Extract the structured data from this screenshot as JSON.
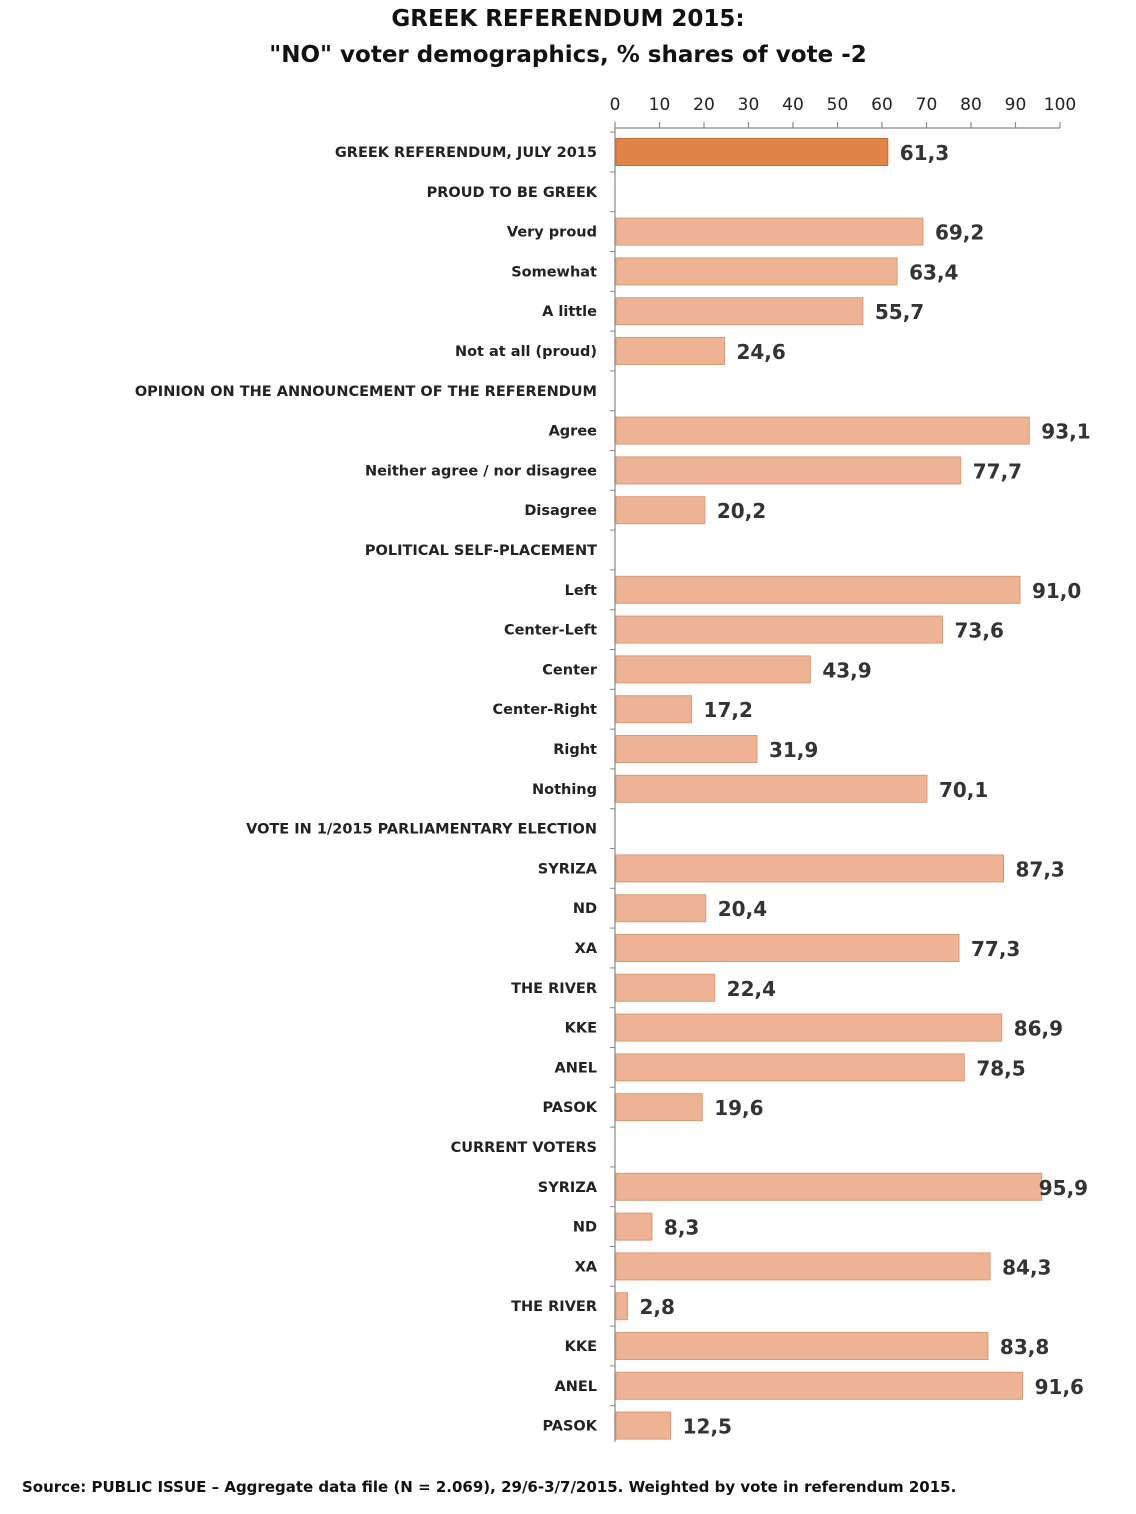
{
  "chart_data": {
    "type": "bar",
    "orientation": "horizontal",
    "title": "GREEK REFERENDUM 2015:",
    "subtitle": "\"NO\" voter demographics, % shares of vote -2",
    "xlim": [
      0,
      100
    ],
    "xticks": [
      "0",
      "10",
      "20",
      "30",
      "40",
      "50",
      "60",
      "70",
      "80",
      "90",
      "100"
    ],
    "highlight_color": "#E0844A",
    "bar_color": "#EDB394",
    "rows": [
      {
        "label": "GREEK REFERENDUM, JULY 2015",
        "value": 61.3,
        "value_label": "61,3",
        "highlight": true
      },
      {
        "label": "PROUD TO BE GREEK",
        "header": true
      },
      {
        "label": "Very proud",
        "value": 69.2,
        "value_label": "69,2"
      },
      {
        "label": "Somewhat",
        "value": 63.4,
        "value_label": "63,4"
      },
      {
        "label": "A little",
        "value": 55.7,
        "value_label": "55,7"
      },
      {
        "label": "Not at all (proud)",
        "value": 24.6,
        "value_label": "24,6"
      },
      {
        "label": "OPINION ON THE ANNOUNCEMENT OF THE REFERENDUM",
        "header": true
      },
      {
        "label": "Agree",
        "value": 93.1,
        "value_label": "93,1"
      },
      {
        "label": "Neither agree / nor disagree",
        "value": 77.7,
        "value_label": "77,7"
      },
      {
        "label": "Disagree",
        "value": 20.2,
        "value_label": "20,2"
      },
      {
        "label": "POLITICAL SELF-PLACEMENT",
        "header": true
      },
      {
        "label": "Left",
        "value": 91.0,
        "value_label": "91,0"
      },
      {
        "label": "Center-Left",
        "value": 73.6,
        "value_label": "73,6"
      },
      {
        "label": "Center",
        "value": 43.9,
        "value_label": "43,9"
      },
      {
        "label": "Center-Right",
        "value": 17.2,
        "value_label": "17,2"
      },
      {
        "label": "Right",
        "value": 31.9,
        "value_label": "31,9"
      },
      {
        "label": "Nothing",
        "value": 70.1,
        "value_label": "70,1"
      },
      {
        "label": "VOTE IN 1/2015 PARLIAMENTARY ELECTION",
        "header": true
      },
      {
        "label": "SYRIZA",
        "value": 87.3,
        "value_label": "87,3"
      },
      {
        "label": "ND",
        "value": 20.4,
        "value_label": "20,4"
      },
      {
        "label": "XA",
        "value": 77.3,
        "value_label": "77,3"
      },
      {
        "label": "THE RIVER",
        "value": 22.4,
        "value_label": "22,4"
      },
      {
        "label": "KKE",
        "value": 86.9,
        "value_label": "86,9"
      },
      {
        "label": "ANEL",
        "value": 78.5,
        "value_label": "78,5"
      },
      {
        "label": "PASOK",
        "value": 19.6,
        "value_label": "19,6"
      },
      {
        "label": "CURRENT VOTERS",
        "header": true
      },
      {
        "label": "SYRIZA",
        "value": 95.9,
        "value_label": "95,9"
      },
      {
        "label": "ND",
        "value": 8.3,
        "value_label": "8,3"
      },
      {
        "label": "XA",
        "value": 84.3,
        "value_label": "84,3"
      },
      {
        "label": "THE RIVER",
        "value": 2.8,
        "value_label": "2,8"
      },
      {
        "label": "KKE",
        "value": 83.8,
        "value_label": "83,8"
      },
      {
        "label": "ANEL",
        "value": 91.6,
        "value_label": "91,6"
      },
      {
        "label": "PASOK",
        "value": 12.5,
        "value_label": "12,5"
      }
    ]
  },
  "footer": "Source: PUBLIC ISSUE – Aggregate data file (N = 2.069),  29/6-3/7/2015. Weighted by vote in referendum 2015."
}
